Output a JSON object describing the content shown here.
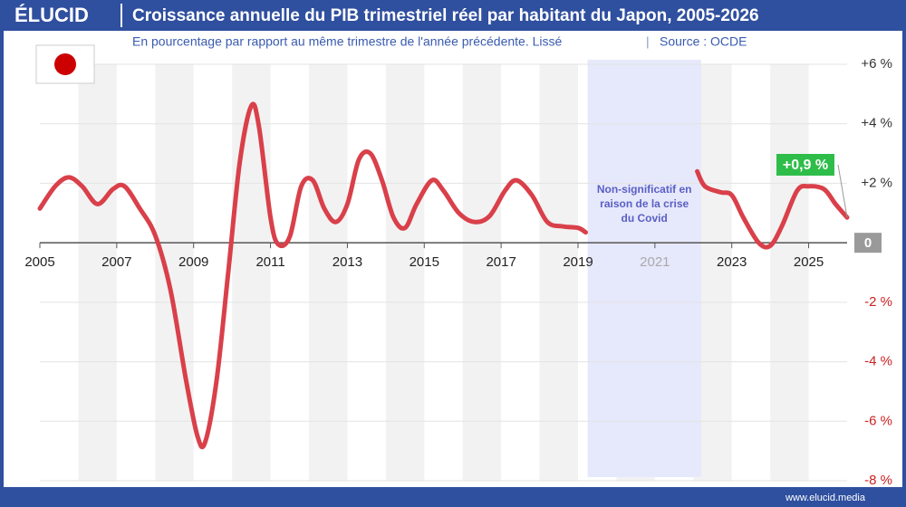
{
  "brand": "ÉLUCID",
  "footer": "www.elucid.media",
  "chart_data": {
    "type": "line",
    "title": "Croissance annuelle du PIB trimestriel réel par habitant du Japon, 2005-2026",
    "subtitle": "En pourcentage par rapport au même trimestre de l'année précédente. Lissé",
    "source": "Source : OCDE",
    "x": [
      2005.0,
      2005.4,
      2005.75,
      2006.1,
      2006.5,
      2006.9,
      2007.2,
      2007.6,
      2008.0,
      2008.4,
      2008.8,
      2009.1,
      2009.3,
      2009.6,
      2009.9,
      2010.2,
      2010.5,
      2010.7,
      2011.0,
      2011.2,
      2011.5,
      2011.8,
      2012.1,
      2012.4,
      2012.7,
      2013.0,
      2013.3,
      2013.6,
      2013.9,
      2014.2,
      2014.5,
      2014.8,
      2015.2,
      2015.5,
      2015.9,
      2016.3,
      2016.7,
      2017.1,
      2017.4,
      2017.8,
      2018.2,
      2018.6,
      2019.0,
      2019.2,
      2020.5,
      2022.1,
      2022.3,
      2022.7,
      2023.0,
      2023.3,
      2023.7,
      2024.0,
      2024.3,
      2024.7,
      2025.0,
      2025.4,
      2025.7,
      2026.0
    ],
    "series": [
      {
        "name": "Japon",
        "color": "#d9404a",
        "values": [
          1.15,
          1.9,
          2.2,
          1.9,
          1.3,
          1.8,
          1.9,
          1.15,
          0.25,
          -1.6,
          -4.6,
          -6.5,
          -6.7,
          -4.6,
          -1.0,
          2.7,
          4.6,
          3.9,
          0.85,
          -0.05,
          0.2,
          1.9,
          2.1,
          1.15,
          0.7,
          1.3,
          2.8,
          3.0,
          2.1,
          0.85,
          0.5,
          1.3,
          2.1,
          1.75,
          1.0,
          0.7,
          0.9,
          1.75,
          2.1,
          1.6,
          0.7,
          0.55,
          0.5,
          0.35,
          null,
          2.4,
          1.9,
          1.7,
          1.6,
          0.85,
          0.0,
          -0.1,
          0.55,
          1.75,
          1.9,
          1.8,
          1.3,
          0.85
        ],
        "value_labels": [
          null,
          null,
          null,
          null,
          null,
          null,
          null,
          null,
          null,
          null,
          null,
          null,
          null,
          null,
          null,
          null,
          null,
          null,
          null,
          null,
          null,
          null,
          null,
          null,
          null,
          null,
          null,
          null,
          null,
          null,
          null,
          null,
          null,
          null,
          null,
          null,
          null,
          null,
          null,
          null,
          null,
          null,
          null,
          null,
          null,
          null,
          null,
          null,
          null,
          null,
          null,
          null,
          null,
          null,
          null,
          null,
          null,
          "+0,9 %"
        ]
      }
    ],
    "shaded_region": {
      "x": [
        2019.25,
        2022.2
      ],
      "label": [
        "Non-significatif en",
        "raison de la crise",
        "du Covid"
      ]
    },
    "xlim": [
      2005,
      2026
    ],
    "xticks": [
      2005,
      2007,
      2009,
      2011,
      2013,
      2015,
      2017,
      2019,
      2021,
      2023,
      2025
    ],
    "ylim": [
      -8,
      6
    ],
    "yticks": [
      {
        "value": 6,
        "label": "+6 %"
      },
      {
        "value": 4,
        "label": "+4 %"
      },
      {
        "value": 2,
        "label": "+2 %"
      },
      0,
      {
        "value": -2,
        "label": "-2 %"
      },
      {
        "value": -4,
        "label": "-4 %"
      },
      {
        "value": -6,
        "label": "-6 %"
      },
      {
        "value": -8,
        "label": "-8 %"
      }
    ],
    "grid": true
  }
}
